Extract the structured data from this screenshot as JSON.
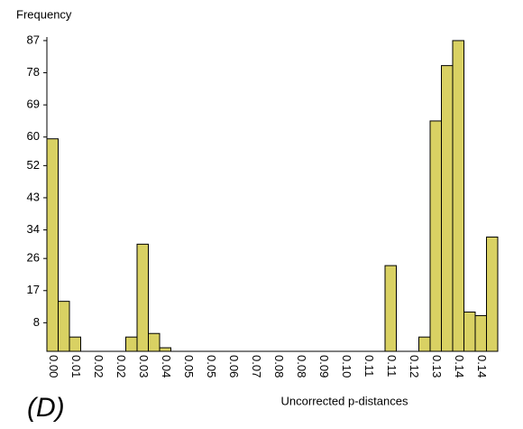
{
  "chart_data": {
    "type": "bar",
    "y_label": "Frequency",
    "x_label": "Uncorrected p-distances",
    "panel_label": "(D)",
    "categories": [
      "0.00",
      null,
      "0.01",
      null,
      "0.02",
      null,
      "0.02",
      null,
      "0.03",
      null,
      "0.04",
      null,
      "0.05",
      null,
      "0.05",
      null,
      "0.06",
      null,
      "0.07",
      null,
      "0.08",
      null,
      "0.08",
      null,
      "0.09",
      null,
      "0.10",
      null,
      "0.11",
      null,
      "0.11",
      null,
      "0.12",
      null,
      "0.13",
      null,
      "0.14",
      null,
      "0.14",
      null
    ],
    "values": [
      59.5,
      14,
      4,
      0,
      0,
      0,
      0,
      4,
      30,
      5,
      1,
      0,
      0,
      0,
      0,
      0,
      0,
      0,
      0,
      0,
      0,
      0,
      0,
      0,
      0,
      0,
      0,
      0,
      0,
      0,
      24,
      0,
      0,
      4,
      64.5,
      80,
      87,
      11,
      10,
      32
    ],
    "color": "#d9d163",
    "ylim": [
      0,
      88
    ],
    "yticks": [
      8,
      17,
      26,
      34,
      43,
      52,
      60,
      69,
      78,
      87
    ]
  }
}
